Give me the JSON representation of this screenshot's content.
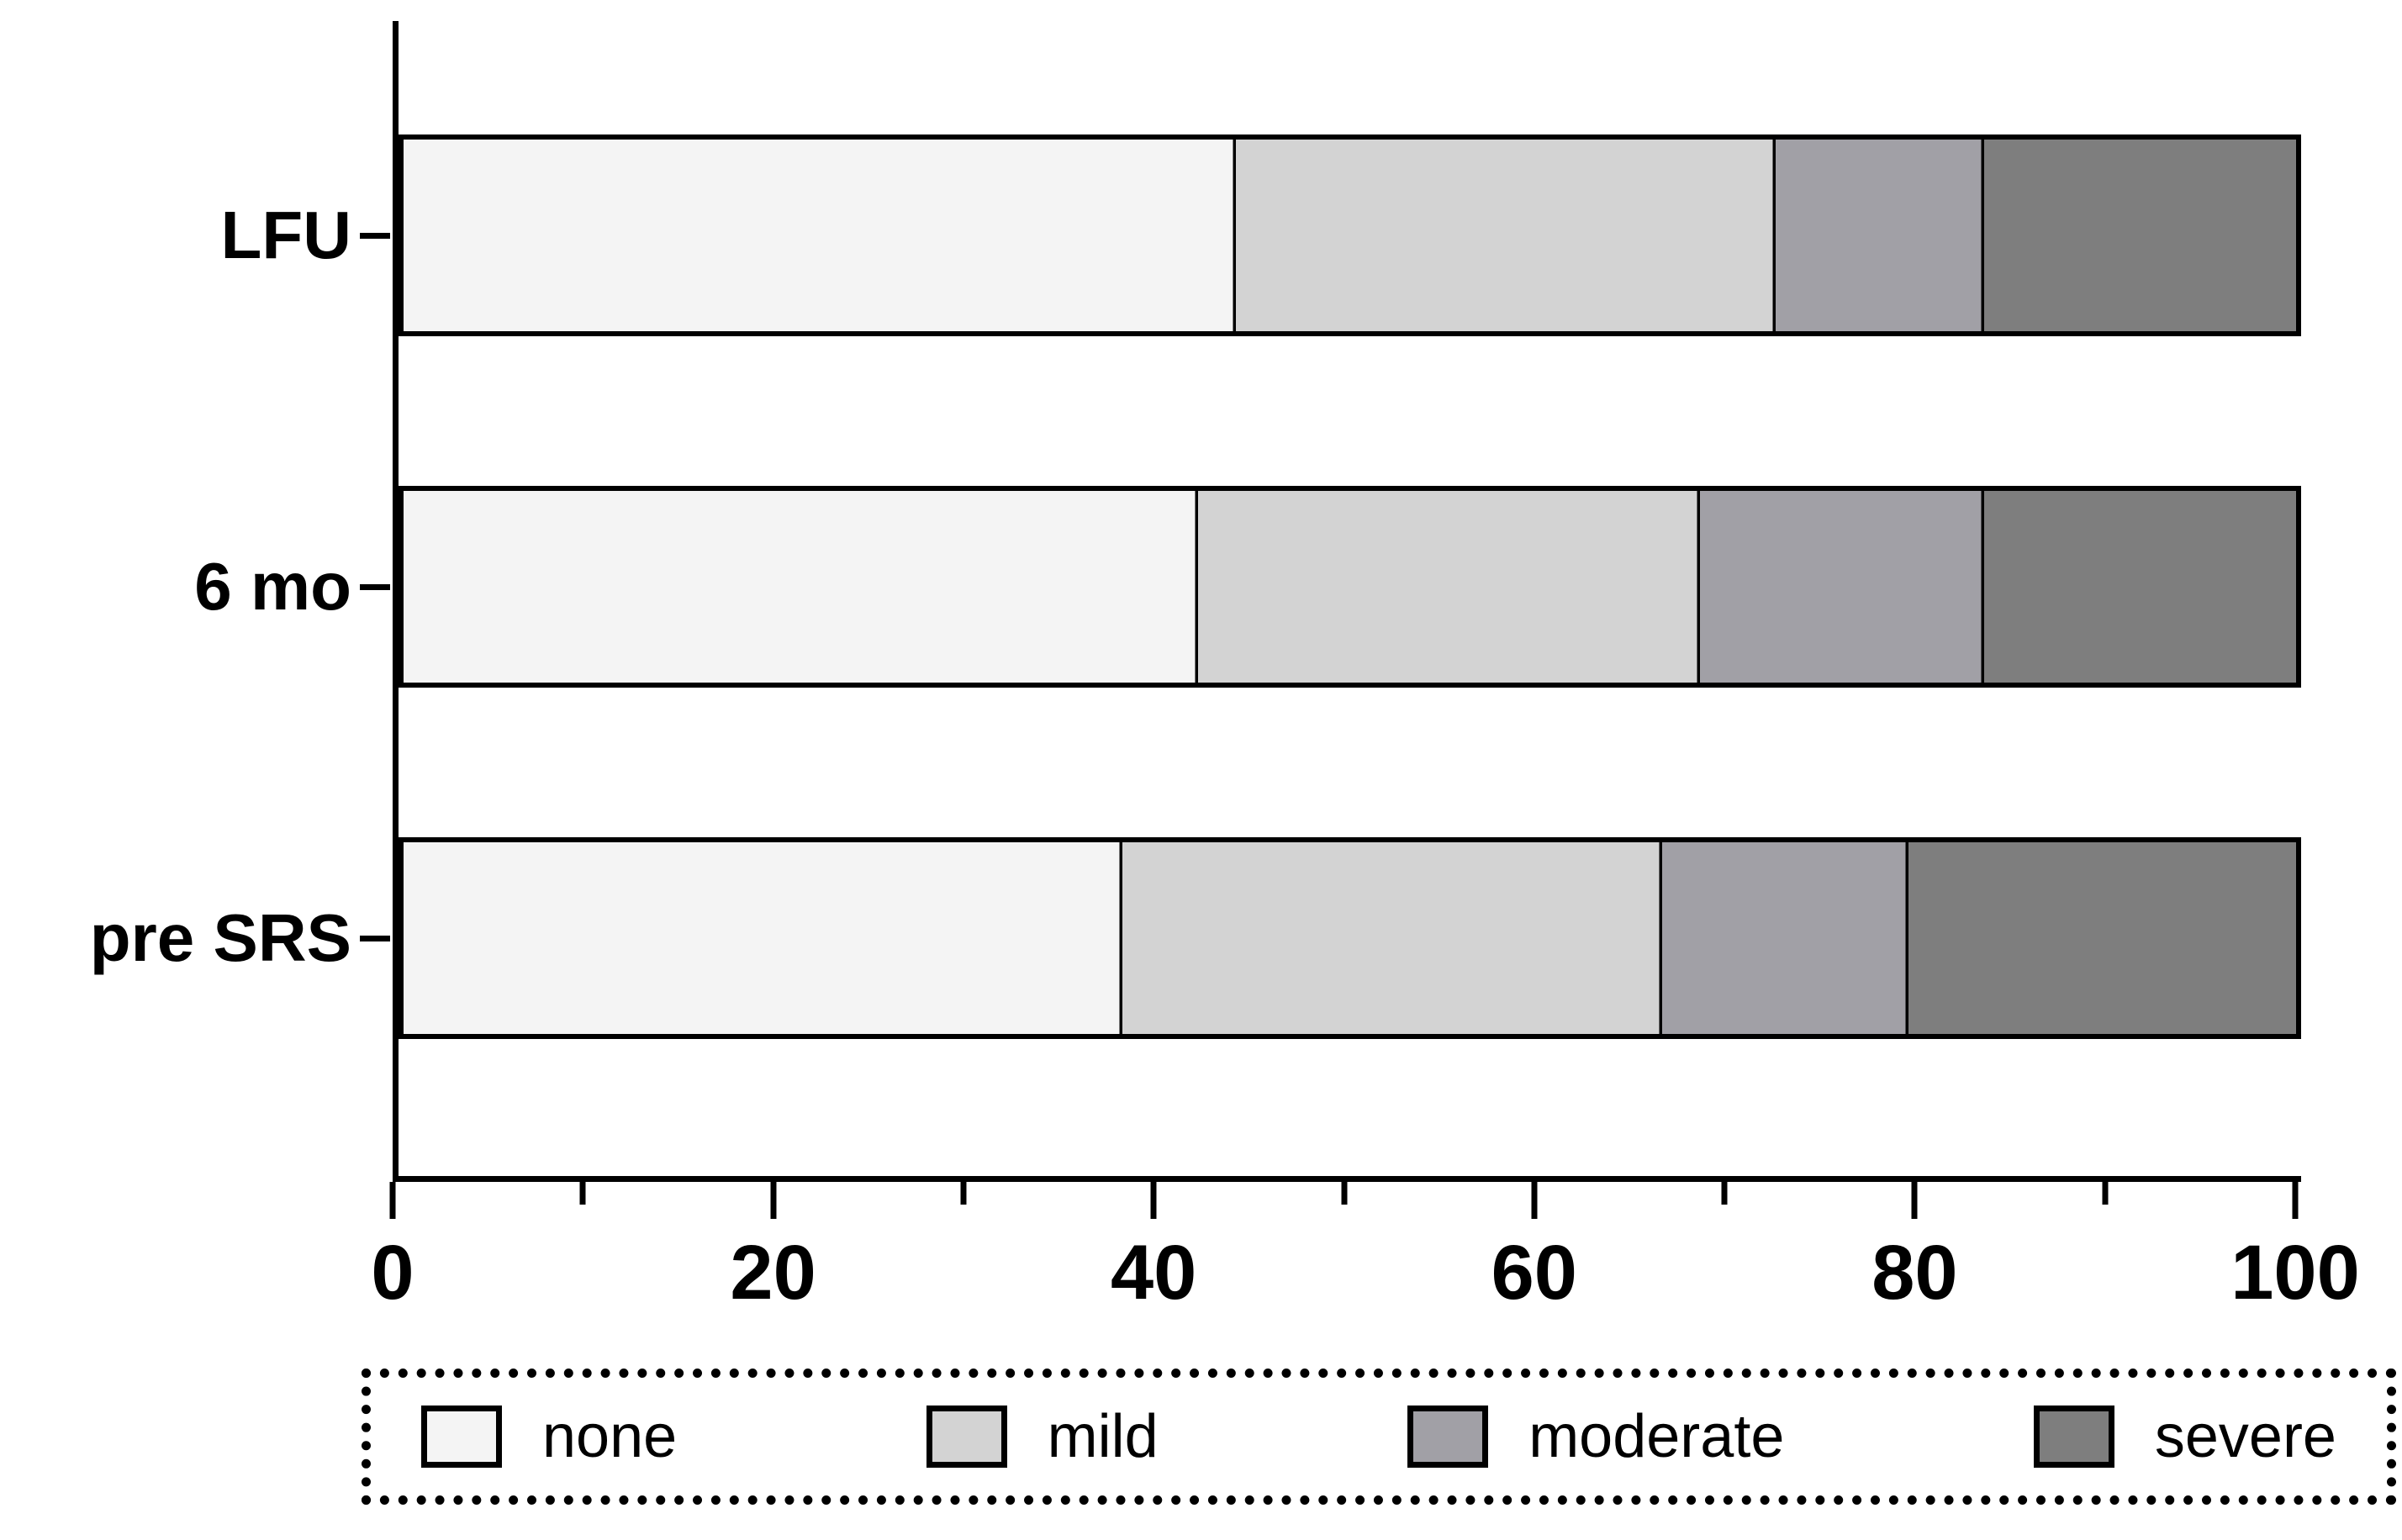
{
  "chart_data": {
    "type": "bar",
    "subtype": "horizontal-stacked",
    "title": "",
    "xlabel": "",
    "ylabel": "",
    "xlim": [
      0,
      100
    ],
    "x_major_ticks": [
      0,
      20,
      40,
      60,
      80,
      100
    ],
    "x_minor_ticks": [
      10,
      30,
      50,
      70,
      90
    ],
    "x_tick_labels": [
      "0",
      "20",
      "40",
      "60",
      "80",
      "100"
    ],
    "grid": false,
    "row_order_top_to_bottom": true,
    "categories": [
      "LFU",
      "6 mo",
      "pre SRS"
    ],
    "series": [
      {
        "name": "none",
        "color": "#f4f4f4",
        "values": [
          44,
          42,
          38
        ]
      },
      {
        "name": "mild",
        "color": "#d3d3d3",
        "values": [
          28.5,
          26.5,
          28.5
        ]
      },
      {
        "name": "moderate",
        "color": "#a1a0a6",
        "values": [
          11,
          15,
          13
        ]
      },
      {
        "name": "severe",
        "color": "#7e7e7e",
        "values": [
          16.5,
          16.5,
          20.5
        ]
      }
    ],
    "stacked_boundaries": {
      "LFU": [
        44,
        72.5,
        83.5,
        100
      ],
      "6 mo": [
        42,
        68.5,
        83.5,
        100
      ],
      "pre SRS": [
        38,
        66.5,
        79.5,
        100
      ]
    },
    "legend_position": "bottom",
    "legend_border": "dotted",
    "legend_entries": [
      "none",
      "mild",
      "moderate",
      "severe"
    ],
    "axis_color": "#000000",
    "bar_outline_color": "#000000"
  }
}
